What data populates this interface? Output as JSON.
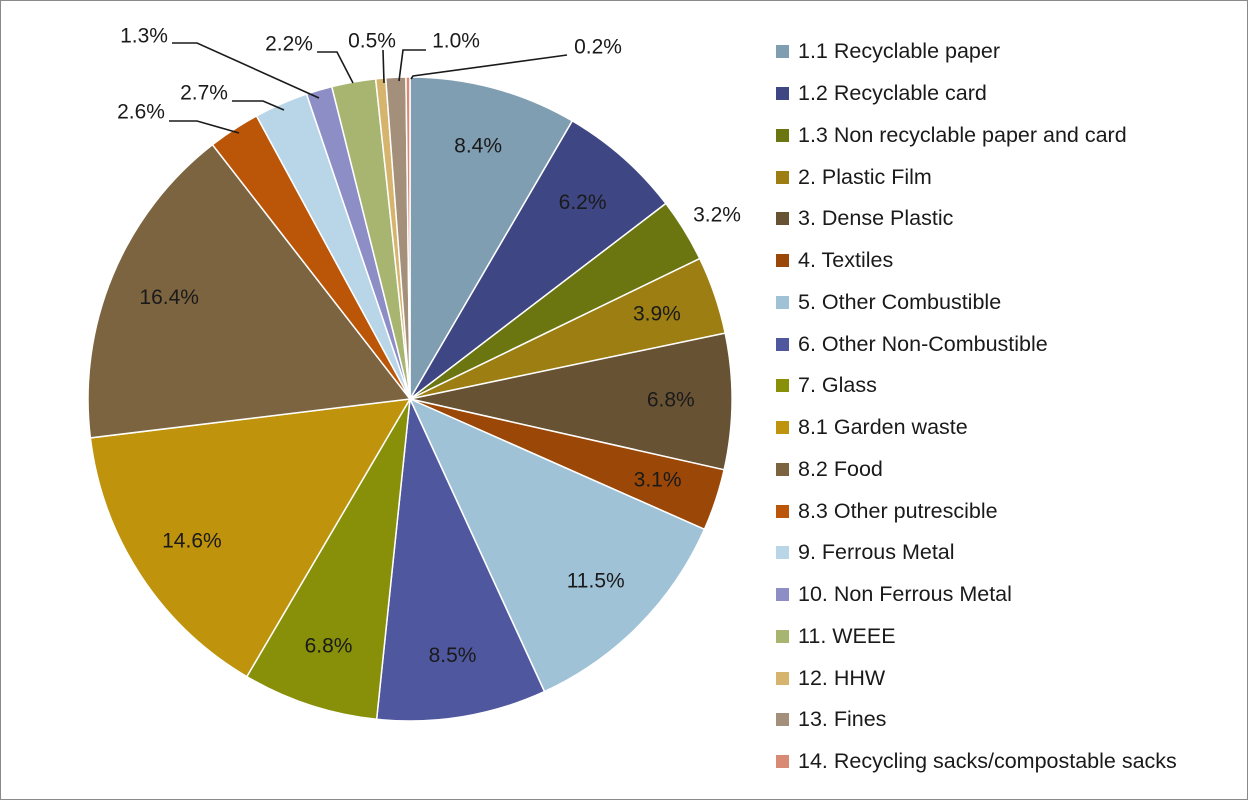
{
  "chart_data": {
    "type": "pie",
    "title": "",
    "legend_position": "right",
    "slices": [
      {
        "label": "1.1 Recyclable paper",
        "value": 8.4,
        "value_label": "8.4%",
        "color": "#7f9eb2"
      },
      {
        "label": "1.2 Recyclable card",
        "value": 6.2,
        "value_label": "6.2%",
        "color": "#3e4683"
      },
      {
        "label": "1.3 Non recyclable paper and card",
        "value": 3.2,
        "value_label": "3.2%",
        "color": "#6b7610"
      },
      {
        "label": "2. Plastic Film",
        "value": 3.9,
        "value_label": "3.9%",
        "color": "#9c7e12"
      },
      {
        "label": "3. Dense Plastic",
        "value": 6.8,
        "value_label": "6.8%",
        "color": "#685234"
      },
      {
        "label": "4. Textiles",
        "value": 3.1,
        "value_label": "3.1%",
        "color": "#9b4708"
      },
      {
        "label": "5. Other Combustible",
        "value": 11.5,
        "value_label": "11.5%",
        "color": "#a0c2d6"
      },
      {
        "label": "6. Other Non-Combustible",
        "value": 8.5,
        "value_label": "8.5%",
        "color": "#4f579f"
      },
      {
        "label": "7. Glass",
        "value": 6.8,
        "value_label": "6.8%",
        "color": "#879008"
      },
      {
        "label": "8.1 Garden waste",
        "value": 14.6,
        "value_label": "14.6%",
        "color": "#bf930b"
      },
      {
        "label": "8.2 Food",
        "value": 16.4,
        "value_label": "16.4%",
        "color": "#7c6440"
      },
      {
        "label": "8.3 Other putrescible",
        "value": 2.6,
        "value_label": "2.6%",
        "color": "#bb5508"
      },
      {
        "label": "9. Ferrous Metal",
        "value": 2.7,
        "value_label": "2.7%",
        "color": "#b9d6e8"
      },
      {
        "label": "10. Non Ferrous Metal",
        "value": 1.3,
        "value_label": "1.3%",
        "color": "#8e8ec6"
      },
      {
        "label": "11. WEEE",
        "value": 2.2,
        "value_label": "2.2%",
        "color": "#a8b570"
      },
      {
        "label": "12. HHW",
        "value": 0.5,
        "value_label": "0.5%",
        "color": "#d6b46d"
      },
      {
        "label": "13. Fines",
        "value": 1.0,
        "value_label": "1.0%",
        "color": "#a48f7a"
      },
      {
        "label": "14. Recycling sacks/compostable sacks",
        "value": 0.2,
        "value_label": "0.2%",
        "color": "#d98a75"
      }
    ]
  }
}
